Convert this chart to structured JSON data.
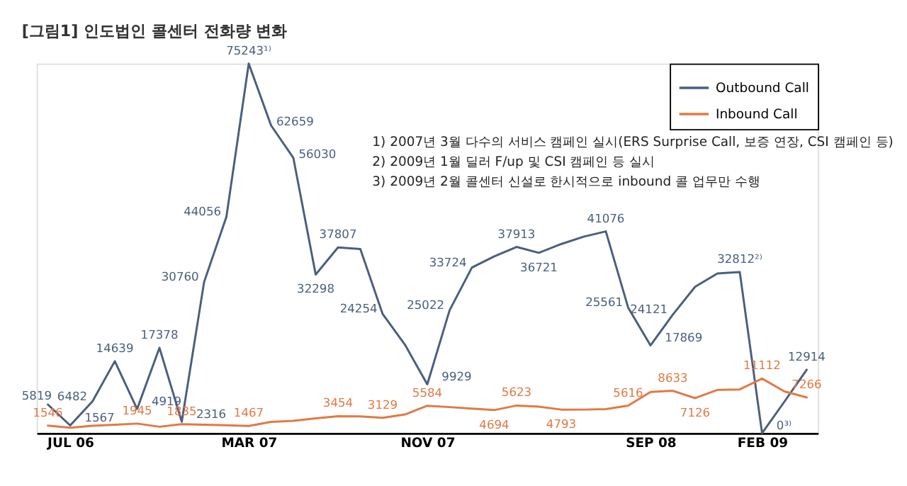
{
  "chart_data": {
    "type": "line",
    "title": "[그림1] 인도법인 콜센터 전화량 변화",
    "categories": [
      null,
      "JUL 06",
      null,
      null,
      null,
      null,
      null,
      null,
      null,
      "MAR 07",
      null,
      null,
      null,
      null,
      null,
      null,
      null,
      "NOV 07",
      null,
      null,
      null,
      null,
      null,
      null,
      null,
      null,
      null,
      "SEP 08",
      null,
      null,
      null,
      null,
      "FEB 09",
      null,
      null
    ],
    "series": [
      {
        "name": "Outbound Call",
        "color": "#4a5f7e",
        "values": [
          5819,
          1567,
          6482,
          14639,
          4919,
          17378,
          2316,
          30760,
          44056,
          75243,
          62659,
          56030,
          32298,
          37807,
          37500,
          24254,
          18000,
          9929,
          25022,
          33724,
          36000,
          37913,
          36721,
          38500,
          40000,
          41076,
          25561,
          17869,
          24121,
          29800,
          32500,
          32812,
          0,
          6400,
          12914
        ],
        "value_labels": [
          "5819",
          "1567",
          "6482",
          "14639",
          "4919",
          "17378",
          "2316",
          "30760",
          "44056",
          "75243¹⁾",
          "62659",
          "56030",
          "32298",
          "37807",
          null,
          "24254",
          null,
          "9929",
          "25022",
          "33724",
          null,
          "37913",
          "36721",
          null,
          null,
          "41076",
          "25561",
          "17869",
          "24121",
          null,
          null,
          "32812²⁾",
          "0³⁾",
          null,
          "12914"
        ]
      },
      {
        "name": "Inbound Call",
        "color": "#e07a45",
        "values": [
          1546,
          1100,
          1500,
          1700,
          1945,
          1300,
          1835,
          1700,
          1600,
          1467,
          2300,
          2500,
          3000,
          3454,
          3400,
          3129,
          3800,
          5584,
          5300,
          5000,
          4694,
          5623,
          5400,
          4793,
          4800,
          4900,
          5616,
          8400,
          8633,
          7126,
          8800,
          8900,
          11112,
          8500,
          7266
        ],
        "value_labels": [
          "1546",
          null,
          null,
          null,
          "1945",
          null,
          "1835",
          null,
          null,
          "1467",
          null,
          null,
          null,
          "3454",
          null,
          "3129",
          null,
          "5584",
          null,
          null,
          "4694",
          "5623",
          null,
          "4793",
          null,
          null,
          "5616",
          null,
          "8633",
          "7126",
          null,
          null,
          "11112",
          null,
          "7266"
        ]
      }
    ],
    "legend": "top right",
    "grid": false,
    "marker": "none",
    "line_style": "solid",
    "annotations": [
      "1) 2007년 3월 다수의 서비스 캠페인 실시(ERS Surprise Call, 보증 연장, CSI 캠페인 등)",
      "2) 2009년 1월 딜러 F/up 및 CSI 캠페인 등 실시",
      "3) 2009년 2월 콜센터 신설로 한시적으로 inbound 콜 업무만 수행"
    ]
  }
}
